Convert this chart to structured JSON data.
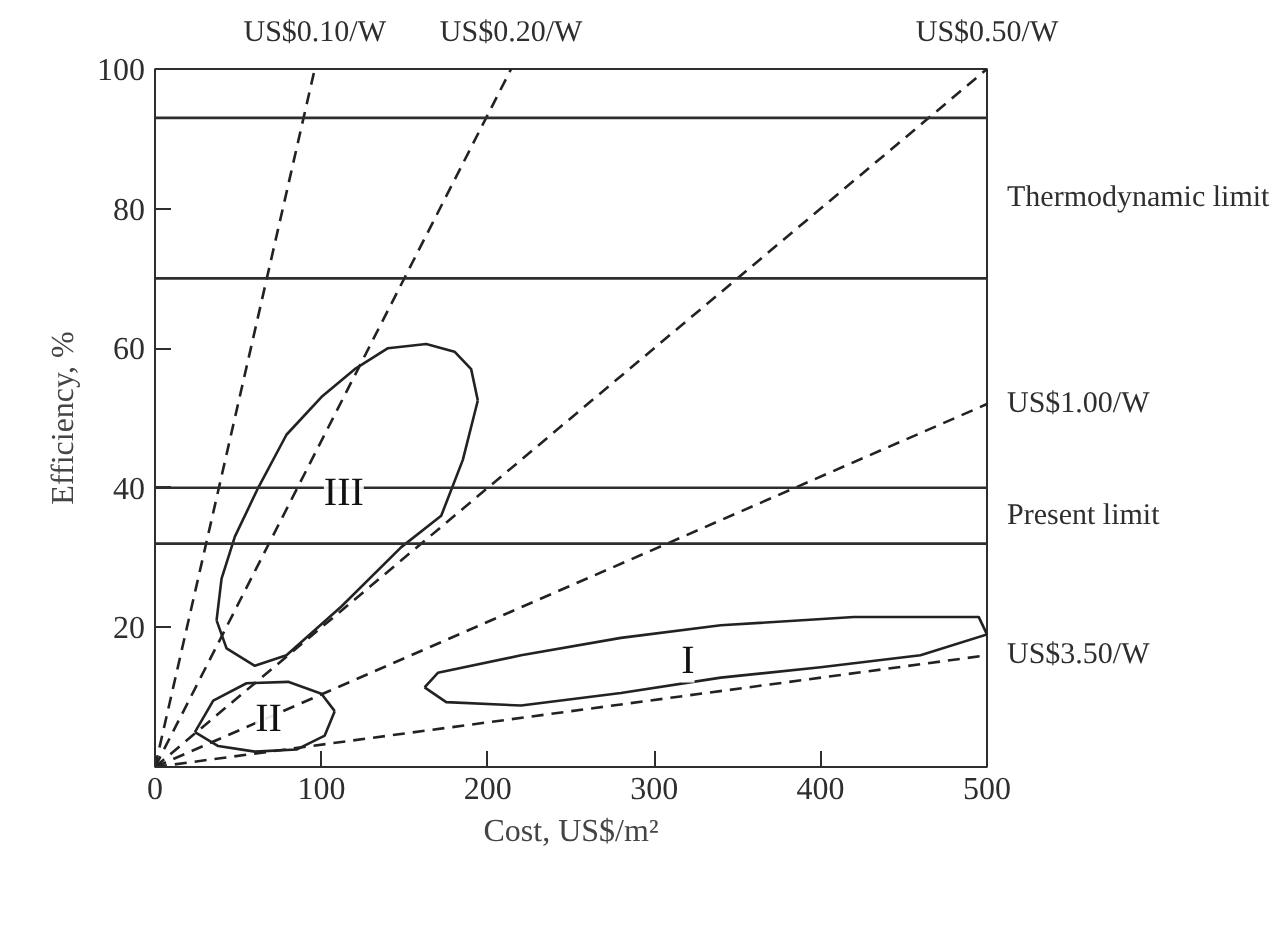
{
  "chart_data": {
    "type": "line",
    "xlabel": "Cost, US$/m²",
    "ylabel": "Efficiency, %",
    "xlim": [
      0,
      500
    ],
    "ylim": [
      0,
      100
    ],
    "xticks": [
      0,
      100,
      200,
      300,
      400,
      500
    ],
    "yticks": [
      20,
      40,
      60,
      80,
      100
    ],
    "marker": "none",
    "series": [
      {
        "name": "US$0.10/W",
        "color": "#222222",
        "line_style": "dashed",
        "x": [
          0,
          96
        ],
        "values": [
          0,
          100
        ]
      },
      {
        "name": "US$0.20/W",
        "color": "#222222",
        "line_style": "dashed",
        "x": [
          0,
          214
        ],
        "values": [
          0,
          100
        ]
      },
      {
        "name": "US$0.50/W",
        "color": "#222222",
        "line_style": "dashed",
        "x": [
          0,
          500
        ],
        "values": [
          0,
          100
        ]
      },
      {
        "name": "US$1.00/W",
        "color": "#222222",
        "line_style": "dashed",
        "x": [
          0,
          500
        ],
        "values": [
          0,
          52
        ]
      },
      {
        "name": "US$3.50/W",
        "color": "#222222",
        "line_style": "dashed",
        "x": [
          0,
          500
        ],
        "values": [
          0,
          16
        ]
      },
      {
        "color": "#222222",
        "line_style": "solid",
        "x": [
          37,
          40,
          48,
          62,
          79,
          100,
          120,
          140,
          163,
          180,
          190,
          194
        ],
        "values": [
          21,
          27,
          33,
          40,
          47.6,
          53,
          57,
          60,
          60.6,
          59.5,
          57,
          52.5
        ]
      },
      {
        "color": "#222222",
        "line_style": "solid",
        "x": [
          37,
          43,
          60,
          79,
          112,
          148,
          172,
          185,
          194
        ],
        "values": [
          21,
          17,
          14.5,
          16,
          23,
          31.5,
          36,
          44,
          52.5
        ]
      },
      {
        "color": "#222222",
        "line_style": "solid",
        "x": [
          24,
          35,
          55,
          80,
          100,
          108
        ],
        "values": [
          5,
          9.5,
          12,
          12.2,
          10.5,
          8
        ]
      },
      {
        "color": "#222222",
        "line_style": "solid",
        "x": [
          24,
          38,
          60,
          85,
          102,
          108
        ],
        "values": [
          5,
          3,
          2.2,
          2.5,
          4.5,
          8
        ]
      },
      {
        "color": "#222222",
        "line_style": "solid",
        "x": [
          162,
          170,
          220,
          280,
          340,
          420,
          495,
          500
        ],
        "values": [
          11.4,
          13.5,
          16,
          18.5,
          20.3,
          21.5,
          21.5,
          19
        ]
      },
      {
        "color": "#222222",
        "line_style": "solid",
        "x": [
          162,
          175,
          220,
          280,
          340,
          400,
          460,
          500
        ],
        "values": [
          11.4,
          9.3,
          8.8,
          10.6,
          12.8,
          14.3,
          16,
          19
        ]
      }
    ],
    "ref_lines": [
      {
        "axis": "y",
        "value": 93,
        "label": null
      },
      {
        "axis": "y",
        "value": 70,
        "label": null
      },
      {
        "axis": "y",
        "value": 40,
        "label": null
      },
      {
        "axis": "y",
        "value": 32,
        "label": null
      }
    ],
    "annotations": [
      "Thermodynamic limit",
      "Present limit",
      "III",
      "II",
      "I"
    ]
  }
}
